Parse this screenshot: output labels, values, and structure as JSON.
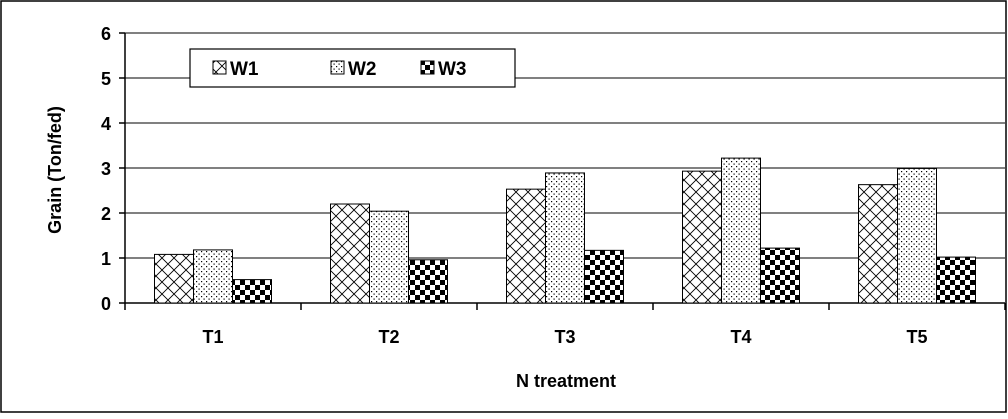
{
  "chart_data": {
    "type": "bar",
    "title": "",
    "xlabel": "N treatment",
    "ylabel": "Grain (Ton/fed)",
    "categories": [
      "T1",
      "T2",
      "T3",
      "T4",
      "T5"
    ],
    "ylim": [
      0,
      6
    ],
    "yticks": [
      "0",
      "1",
      "2",
      "3",
      "4",
      "5",
      "6"
    ],
    "grid": true,
    "legend_position": "top-left",
    "series": [
      {
        "name": "W1",
        "pattern": "crosshatch",
        "values": [
          1.08,
          2.2,
          2.53,
          2.93,
          2.63
        ]
      },
      {
        "name": "W2",
        "pattern": "dots",
        "values": [
          1.18,
          2.04,
          2.89,
          3.22,
          2.99
        ]
      },
      {
        "name": "W3",
        "pattern": "checker",
        "values": [
          0.52,
          0.96,
          1.17,
          1.22,
          1.02
        ]
      }
    ]
  }
}
